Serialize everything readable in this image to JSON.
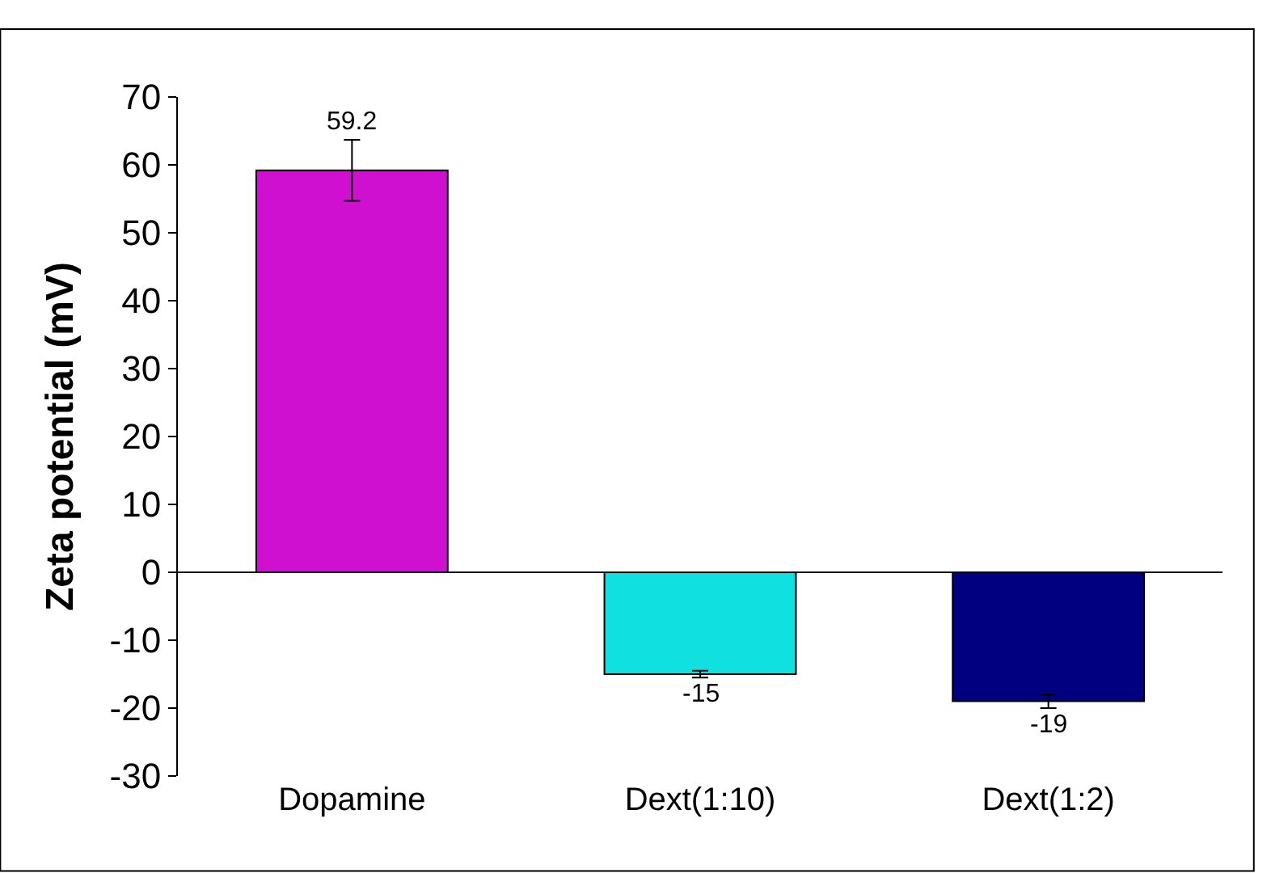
{
  "chart_data": {
    "type": "bar",
    "ylabel": "Zeta potential (mV)",
    "categories": [
      "Dopamine",
      "Dext(1:10)",
      "Dext(1:2)"
    ],
    "values": [
      59.2,
      -15,
      -19
    ],
    "colors": [
      "#d010d0",
      "#10e0e0",
      "#000080"
    ],
    "errors": [
      4.5,
      0.5,
      1
    ],
    "data_labels": true,
    "ylim": [
      -30,
      70
    ],
    "yticks": [
      -30,
      -20,
      -10,
      0,
      10,
      20,
      30,
      40,
      50,
      60,
      70
    ],
    "legend": false
  }
}
